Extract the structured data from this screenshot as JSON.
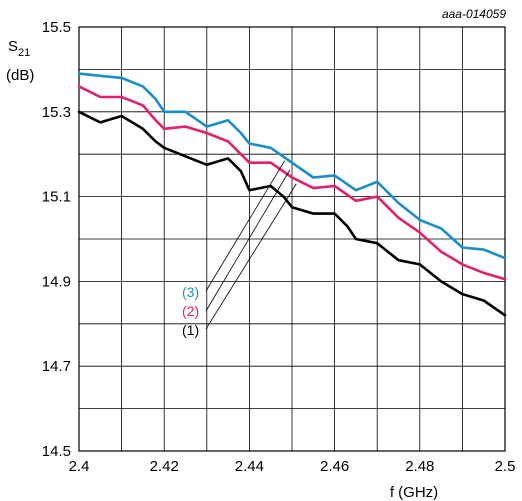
{
  "chart_data": {
    "type": "line",
    "reference_id": "aaa-014059",
    "ylabel_main": "S",
    "ylabel_sub": "21",
    "ylabel_unit": "(dB)",
    "xlabel": "f (GHz)",
    "xlim": [
      2.4,
      2.5
    ],
    "ylim": [
      14.5,
      15.5
    ],
    "x_ticks": [
      "2.4",
      "2.42",
      "2.44",
      "2.46",
      "2.48",
      "2.5"
    ],
    "y_ticks": [
      "14.5",
      "14.7",
      "14.9",
      "15.1",
      "15.3",
      "15.5"
    ],
    "grid": true,
    "series": [
      {
        "name": "(3)",
        "color": "#1a8fc6",
        "x": [
          2.4,
          2.405,
          2.41,
          2.415,
          2.418,
          2.42,
          2.425,
          2.43,
          2.435,
          2.438,
          2.44,
          2.445,
          2.45,
          2.455,
          2.46,
          2.465,
          2.47,
          2.475,
          2.48,
          2.485,
          2.49,
          2.495,
          2.5
        ],
        "y": [
          15.39,
          15.385,
          15.38,
          15.36,
          15.33,
          15.3,
          15.3,
          15.265,
          15.28,
          15.25,
          15.225,
          15.215,
          15.18,
          15.145,
          15.15,
          15.115,
          15.135,
          15.085,
          15.045,
          15.025,
          14.98,
          14.975,
          14.955
        ]
      },
      {
        "name": "(2)",
        "color": "#e3206b",
        "x": [
          2.4,
          2.405,
          2.41,
          2.415,
          2.418,
          2.42,
          2.425,
          2.43,
          2.435,
          2.438,
          2.44,
          2.445,
          2.45,
          2.455,
          2.46,
          2.465,
          2.47,
          2.475,
          2.48,
          2.485,
          2.49,
          2.495,
          2.5
        ],
        "y": [
          15.36,
          15.335,
          15.335,
          15.315,
          15.28,
          15.26,
          15.265,
          15.25,
          15.23,
          15.2,
          15.18,
          15.18,
          15.145,
          15.12,
          15.125,
          15.09,
          15.1,
          15.05,
          15.015,
          14.97,
          14.94,
          14.92,
          14.905
        ]
      },
      {
        "name": "(1)",
        "color": "#000000",
        "x": [
          2.4,
          2.405,
          2.41,
          2.415,
          2.418,
          2.42,
          2.425,
          2.43,
          2.435,
          2.438,
          2.44,
          2.445,
          2.448,
          2.45,
          2.455,
          2.46,
          2.463,
          2.465,
          2.47,
          2.475,
          2.48,
          2.485,
          2.49,
          2.495,
          2.5
        ],
        "y": [
          15.3,
          15.275,
          15.29,
          15.26,
          15.23,
          15.215,
          15.195,
          15.175,
          15.19,
          15.16,
          15.115,
          15.125,
          15.1,
          15.075,
          15.06,
          15.06,
          15.03,
          15.0,
          14.99,
          14.95,
          14.94,
          14.9,
          14.87,
          14.855,
          14.82
        ]
      }
    ]
  }
}
